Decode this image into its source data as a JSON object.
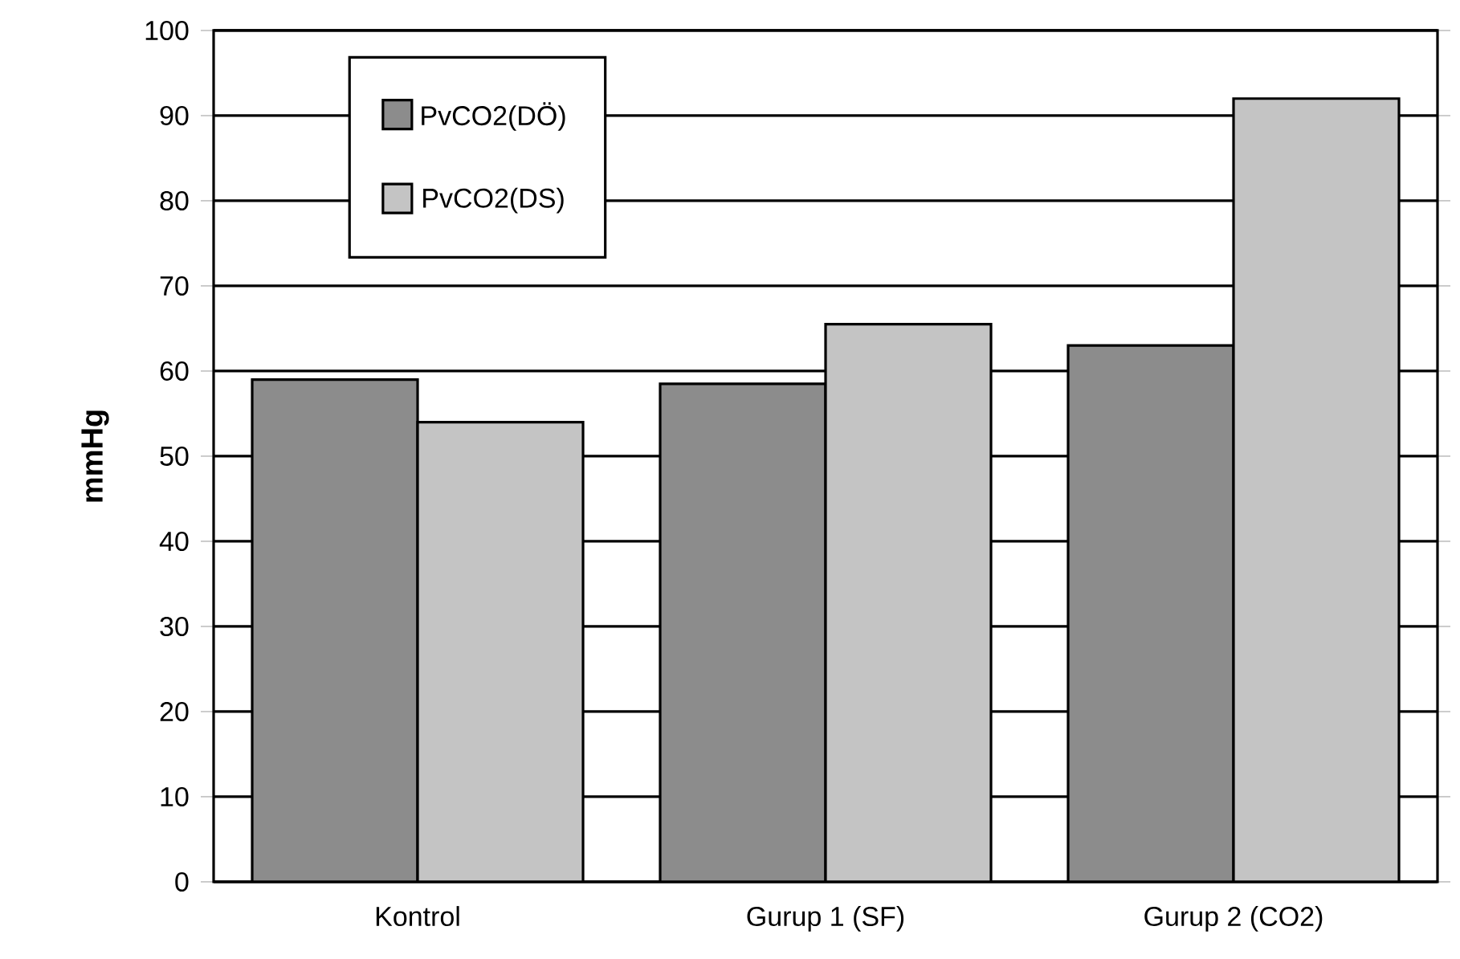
{
  "chart_data": {
    "type": "bar",
    "ylabel": "mmHg",
    "categories": [
      "Kontrol",
      "Gurup 1 (SF)",
      "Gurup 2 (CO2)"
    ],
    "series": [
      {
        "name": "PvCO2(DÖ)",
        "color": "#8c8c8c",
        "values": [
          59,
          58.5,
          63
        ]
      },
      {
        "name": "PvCO2(DS)",
        "color": "#c4c4c4",
        "values": [
          54,
          65.5,
          92
        ]
      }
    ],
    "ylim": [
      0,
      100
    ],
    "yticks": [
      0,
      10,
      20,
      30,
      40,
      50,
      60,
      70,
      80,
      90,
      100
    ],
    "grid": "y",
    "legend": "top left"
  }
}
